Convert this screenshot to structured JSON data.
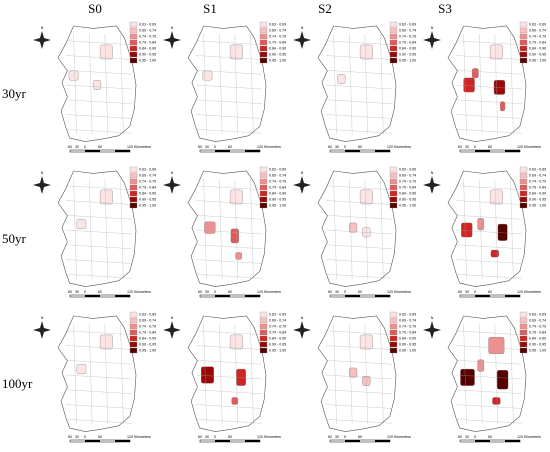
{
  "column_headers": [
    "S0",
    "S1",
    "S2",
    "S3"
  ],
  "row_labels": [
    "30yr",
    "50yr",
    "100yr"
  ],
  "legend": {
    "items": [
      "0.63 - 0.69",
      "0.69 - 0.74",
      "0.74 - 0.79",
      "0.79 - 0.84",
      "0.84 - 0.90",
      "0.90 - 0.95",
      "0.95 - 1.00"
    ],
    "colors": [
      "#fde4e4",
      "#f8c0c0",
      "#ef9090",
      "#e45a5a",
      "#cf2525",
      "#9a0808",
      "#560000"
    ]
  },
  "scale_bar": {
    "labels": [
      "60",
      "30",
      "0",
      "60",
      "120"
    ],
    "unit": "Kilometers"
  },
  "compass": "N"
}
